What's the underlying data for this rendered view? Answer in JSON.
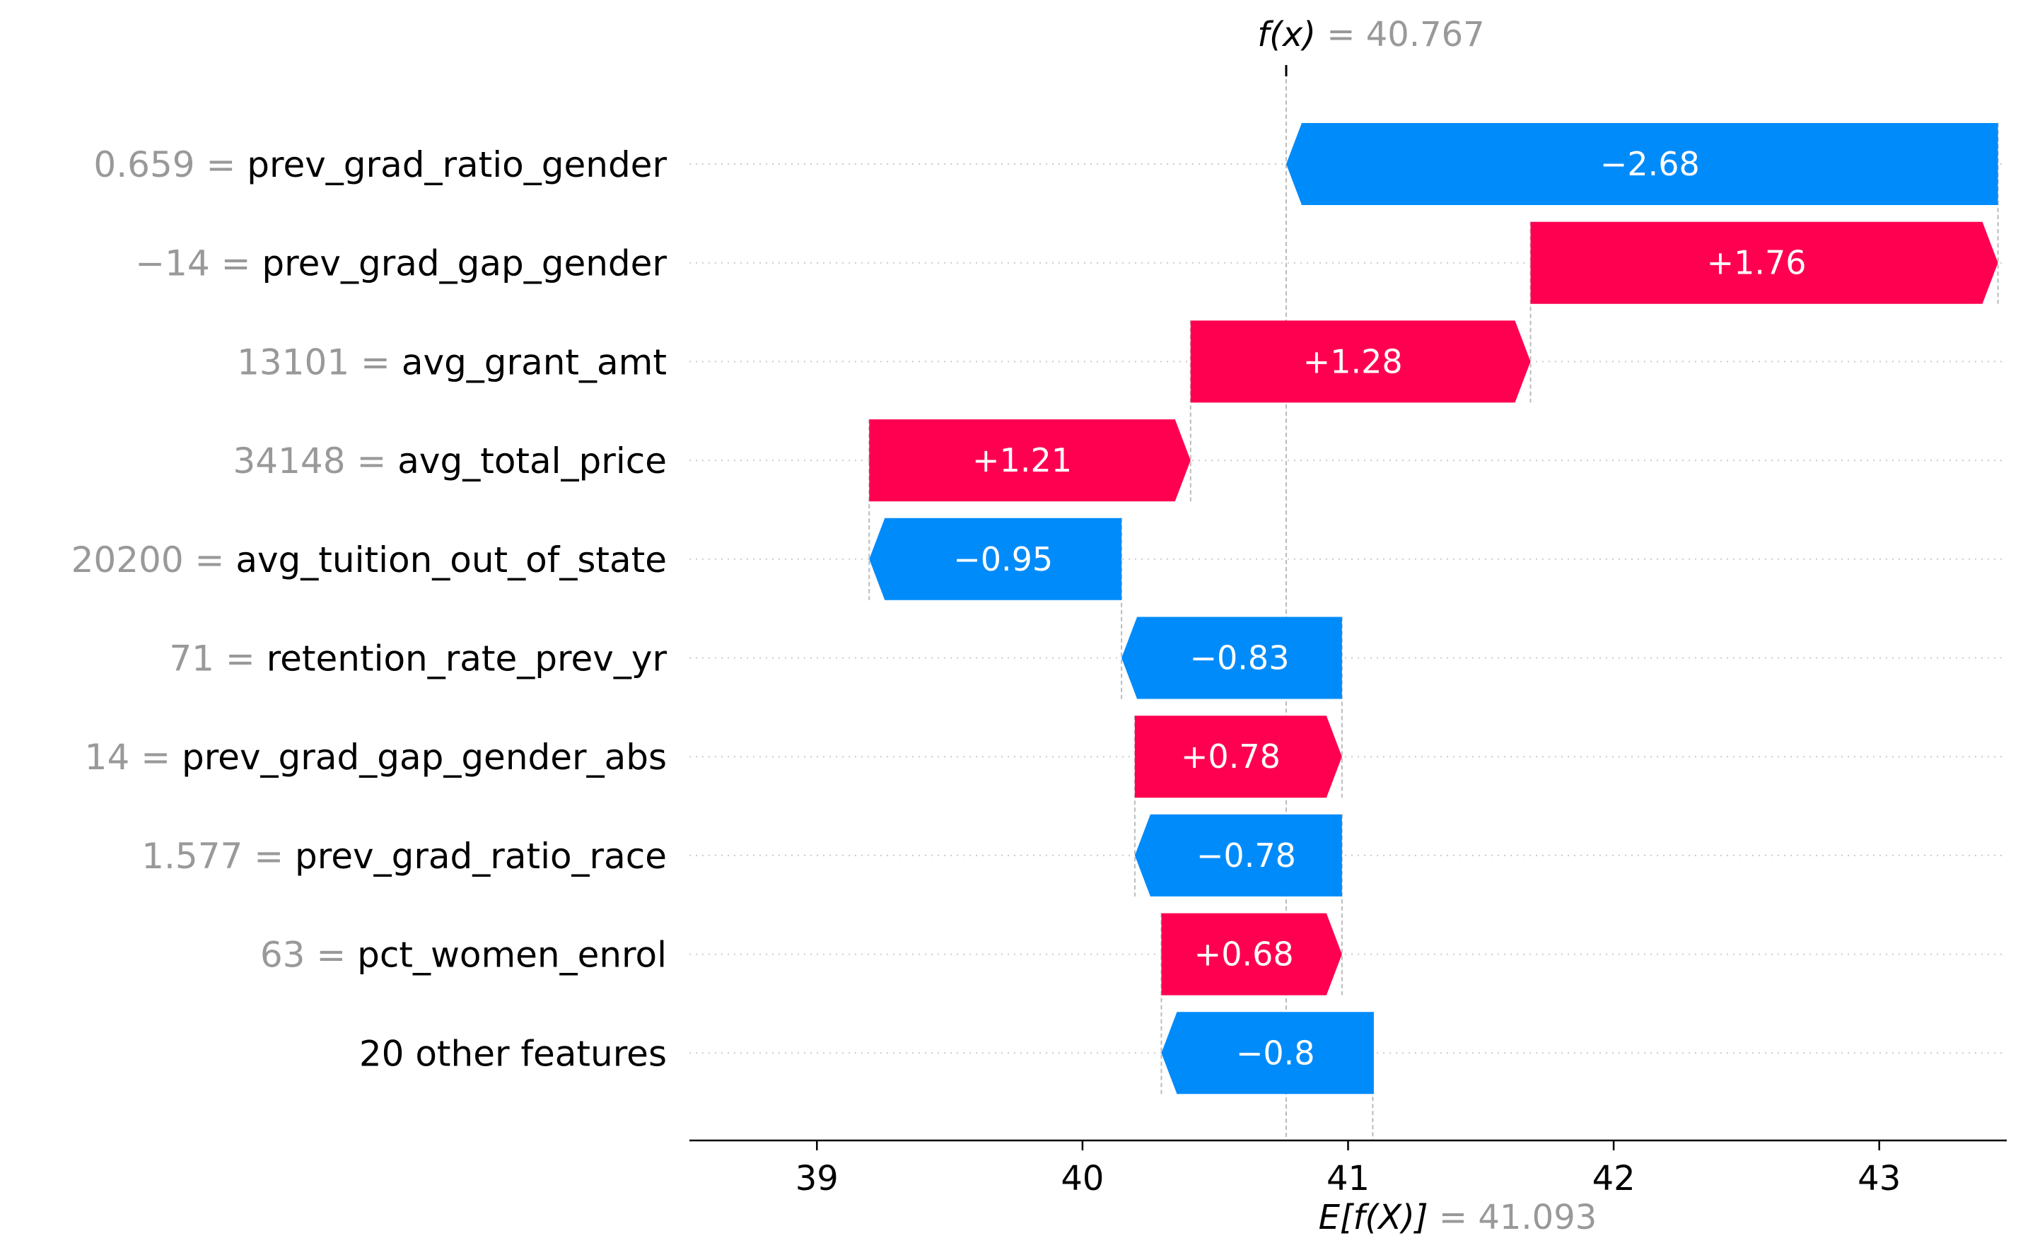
{
  "chart_data": {
    "type": "waterfall",
    "base_value": 41.093,
    "output_value": 40.767,
    "fx_label": "f(x)",
    "fx_value_text": "= 40.767",
    "ex_label": "E[f(X)]",
    "ex_value_text": "= 41.093",
    "xlim": [
      38.52,
      43.48
    ],
    "xticks": [
      39,
      40,
      41,
      42,
      43
    ],
    "grid": "dotted rows",
    "features": [
      {
        "value": "0.659",
        "name": "prev_grad_ratio_gender",
        "shap": -2.68,
        "label": "−2.68"
      },
      {
        "value": "−14",
        "name": "prev_grad_gap_gender",
        "shap": 1.76,
        "label": "+1.76"
      },
      {
        "value": "13101",
        "name": "avg_grant_amt",
        "shap": 1.28,
        "label": "+1.28"
      },
      {
        "value": "34148",
        "name": "avg_total_price",
        "shap": 1.21,
        "label": "+1.21"
      },
      {
        "value": "20200",
        "name": "avg_tuition_out_of_state",
        "shap": -0.95,
        "label": "−0.95"
      },
      {
        "value": "71",
        "name": "retention_rate_prev_yr",
        "shap": -0.83,
        "label": "−0.83"
      },
      {
        "value": "14",
        "name": "prev_grad_gap_gender_abs",
        "shap": 0.78,
        "label": "+0.78"
      },
      {
        "value": "1.577",
        "name": "prev_grad_ratio_race",
        "shap": -0.78,
        "label": "−0.78"
      },
      {
        "value": "63",
        "name": "pct_women_enrol",
        "shap": 0.68,
        "label": "+0.68"
      },
      {
        "value": "",
        "name": "20 other features",
        "shap": -0.8,
        "label": "−0.8"
      }
    ],
    "colors": {
      "positive": "#ff0051",
      "negative": "#008bfb",
      "muted": "#999999",
      "grid": "#cccccc"
    }
  }
}
